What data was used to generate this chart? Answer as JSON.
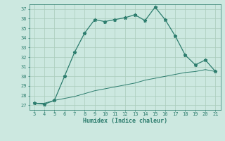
{
  "xlabel": "Humidex (Indice chaleur)",
  "x_data": [
    3,
    4,
    5,
    6,
    7,
    8,
    9,
    10,
    11,
    12,
    13,
    14,
    15,
    16,
    17,
    18,
    19,
    20,
    21
  ],
  "y_main": [
    27.2,
    27.1,
    27.5,
    30.0,
    32.5,
    34.5,
    35.9,
    35.7,
    35.9,
    36.1,
    36.4,
    35.8,
    37.2,
    35.9,
    34.2,
    32.2,
    31.2,
    31.7,
    30.5
  ],
  "y_linear": [
    27.2,
    27.2,
    27.5,
    27.7,
    27.9,
    28.2,
    28.5,
    28.7,
    28.9,
    29.1,
    29.3,
    29.6,
    29.8,
    30.0,
    30.2,
    30.4,
    30.5,
    30.7,
    30.5
  ],
  "line_color": "#2d7d6e",
  "bg_color": "#cce8e0",
  "grid_color": "#aaccbb",
  "ylim": [
    26.5,
    37.5
  ],
  "xlim": [
    2.5,
    21.5
  ],
  "yticks": [
    27,
    28,
    29,
    30,
    31,
    32,
    33,
    34,
    35,
    36,
    37
  ],
  "xticks": [
    3,
    4,
    5,
    6,
    7,
    8,
    9,
    10,
    11,
    12,
    13,
    14,
    15,
    16,
    17,
    18,
    19,
    20,
    21
  ],
  "tick_fontsize": 5.0,
  "xlabel_fontsize": 6.0
}
